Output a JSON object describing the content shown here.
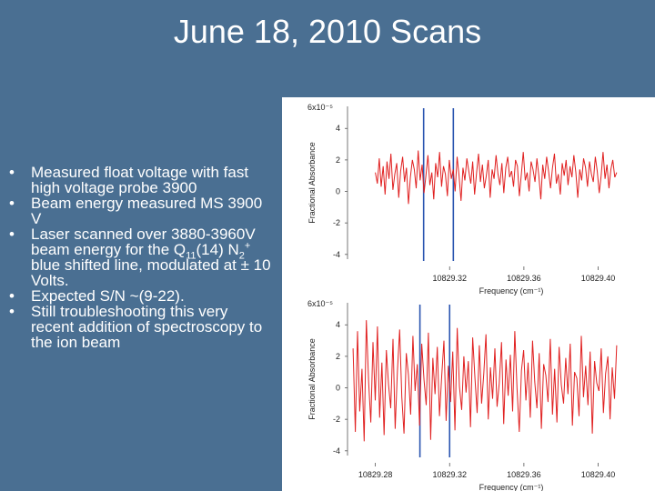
{
  "slide": {
    "title": "June 18, 2010 Scans",
    "bullets": [
      {
        "type": "plain",
        "text": "Measured float voltage with fast high voltage probe 3900"
      },
      {
        "type": "plain",
        "text": "Beam energy measured MS 3900 V"
      },
      {
        "type": "laser",
        "prefix": "Laser scanned over 3880-3960V beam energy for the Q",
        "q_sub": "11",
        "mid": "(14) N",
        "n_sub": "2",
        "n_sup": "+",
        "suffix": " blue shifted line, modulated at ± 10 Volts."
      },
      {
        "type": "plain",
        "text": "Expected S/N ~(9-22)."
      },
      {
        "type": "plain",
        "text": "Still troubleshooting this very recent addition of spectroscopy to the ion beam"
      }
    ],
    "bullet_char": "•"
  },
  "colors": {
    "background": "#4a6f92",
    "trace": "#e02020",
    "marker": "#2a55b0"
  },
  "chart_data": [
    {
      "type": "line",
      "title": "",
      "xlabel": "Frequency (cm⁻¹)",
      "ylabel": "Fractional Absorbance",
      "y_multiplier": "6x10⁻⁵",
      "xlim": [
        10829.265,
        10829.412
      ],
      "ylim": [
        -4.3,
        5.4
      ],
      "x_ticks": [
        10829.32,
        10829.36,
        10829.4
      ],
      "x_tick_labels": [
        "10829.32",
        "10829.36",
        "10829.40"
      ],
      "y_ticks": [
        -4,
        -2,
        0,
        2,
        4
      ],
      "y_tick_labels": [
        "-4",
        "-2",
        "0",
        "2",
        "4"
      ],
      "markers_x": [
        10829.306,
        10829.322
      ],
      "series": [
        {
          "x_start": 10829.28,
          "x_end": 10829.41,
          "values": [
            1.2,
            0.5,
            2.1,
            0.3,
            1.6,
            -0.2,
            1.9,
            0.8,
            2.4,
            0.1,
            1.1,
            1.8,
            -0.4,
            1.3,
            2.2,
            0.6,
            1.5,
            -0.8,
            0.9,
            2.0,
            1.4,
            0.2,
            2.6,
            0.7,
            1.7,
            -0.1,
            1.0,
            2.3,
            0.4,
            1.2,
            -0.5,
            1.8,
            0.9,
            2.5,
            0.3,
            1.6,
            1.1,
            -0.3,
            2.0,
            0.8,
            1.4,
            0.0,
            2.2,
            1.0,
            -0.6,
            1.5,
            0.7,
            2.1,
            1.3,
            0.5,
            1.9,
            -0.2,
            1.2,
            2.4,
            0.6,
            1.7,
            0.2,
            1.0,
            2.0,
            -0.4,
            1.4,
            0.8,
            2.3,
            1.1,
            0.4,
            1.8,
            -0.1,
            1.5,
            2.2,
            0.9,
            1.3,
            0.3,
            2.0,
            1.6,
            -0.3,
            1.1,
            2.5,
            0.7,
            1.2,
            0.0,
            1.9,
            1.4,
            0.6,
            2.1,
            1.0,
            -0.5,
            1.7,
            0.8,
            2.2,
            1.3,
            0.2,
            1.5,
            2.4,
            0.5,
            1.1,
            -0.2,
            1.8,
            1.0,
            2.0,
            0.4,
            1.6,
            0.9,
            2.3,
            1.2,
            -0.4,
            1.4,
            0.7,
            2.1,
            1.5,
            0.3,
            1.9,
            1.1,
            0.6,
            2.2,
            1.3,
            -0.1,
            1.0,
            2.5,
            0.8,
            1.7,
            0.2,
            1.4,
            2.0,
            0.9,
            1.2
          ]
        }
      ]
    },
    {
      "type": "line",
      "title": "",
      "xlabel": "Frequency (cm⁻¹)",
      "ylabel": "Fractional Absorbance",
      "y_multiplier": "6x10⁻⁵",
      "xlim": [
        10829.265,
        10829.412
      ],
      "ylim": [
        -4.3,
        5.4
      ],
      "x_ticks": [
        10829.28,
        10829.32,
        10829.36,
        10829.4
      ],
      "x_tick_labels": [
        "10829.28",
        "10829.32",
        "10829.36",
        "10829.40"
      ],
      "y_ticks": [
        -4,
        -2,
        0,
        2,
        4
      ],
      "y_tick_labels": [
        "-4",
        "-2",
        "0",
        "2",
        "4"
      ],
      "markers_x": [
        10829.304,
        10829.32
      ],
      "series": [
        {
          "x_start": 10829.268,
          "x_end": 10829.41,
          "values": [
            2.5,
            -2.8,
            3.6,
            -1.5,
            1.2,
            -3.4,
            4.3,
            0.4,
            -2.2,
            2.9,
            -0.8,
            3.9,
            -1.9,
            1.6,
            -3.0,
            2.4,
            0.2,
            -1.3,
            3.1,
            -2.6,
            1.0,
            3.7,
            -0.6,
            -2.9,
            2.2,
            0.8,
            -1.7,
            3.3,
            -0.2,
            1.5,
            -2.4,
            2.8,
            0.5,
            -1.1,
            3.5,
            -3.3,
            1.9,
            -0.4,
            2.6,
            -1.8,
            0.7,
            3.0,
            -2.1,
            1.4,
            -0.9,
            2.3,
            -2.7,
            3.8,
            0.1,
            -1.4,
            2.0,
            -0.3,
            1.7,
            -2.5,
            3.2,
            0.6,
            -1.6,
            2.7,
            -1.0,
            0.9,
            3.4,
            -2.0,
            1.3,
            -0.7,
            2.5,
            -1.2,
            0.3,
            2.9,
            -2.3,
            1.8,
            -0.5,
            2.1,
            -1.5,
            3.6,
            0.0,
            -2.8,
            1.1,
            2.4,
            -0.8,
            1.6,
            -1.9,
            3.0,
            0.4,
            -1.3,
            2.2,
            -2.6,
            1.5,
            0.8,
            -0.9,
            3.1,
            -1.7,
            1.2,
            -2.2,
            2.6,
            0.2,
            -1.0,
            1.9,
            -0.4,
            2.8,
            -2.4,
            1.0,
            0.6,
            -1.8,
            3.3,
            -0.6,
            1.4,
            -1.1,
            2.3,
            -2.9,
            1.7,
            0.3,
            -0.2,
            2.5,
            -1.6,
            0.9,
            2.0,
            -2.0,
            1.3,
            -0.7,
            2.7
          ]
        }
      ]
    }
  ]
}
